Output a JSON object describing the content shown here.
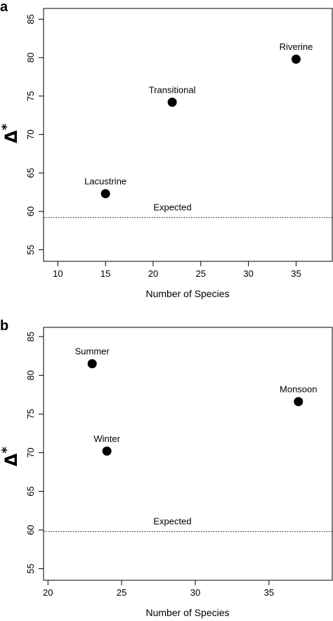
{
  "chart_data": [
    {
      "type": "scatter",
      "panel": "a",
      "xlabel": "Number of Species",
      "ylabel": "Δ*",
      "xlim": [
        8.5,
        38.8
      ],
      "ylim": [
        53.5,
        86.4
      ],
      "xticks": [
        10,
        15,
        20,
        25,
        30,
        35
      ],
      "yticks": [
        55,
        60,
        65,
        70,
        75,
        80,
        85
      ],
      "points": [
        {
          "label": "Lacustrine",
          "x": 15,
          "y": 62.3
        },
        {
          "label": "Transitional",
          "x": 22,
          "y": 74.2
        },
        {
          "label": "Riverine",
          "x": 35,
          "y": 79.8
        }
      ],
      "reference_line": {
        "label": "Expected",
        "y": 59.2,
        "style": "dotted"
      },
      "grid": false
    },
    {
      "type": "scatter",
      "panel": "b",
      "xlabel": "Number of Species",
      "ylabel": "Δ*",
      "xlim": [
        19.7,
        39.3
      ],
      "ylim": [
        53.5,
        86.2
      ],
      "xticks": [
        20,
        25,
        30,
        35
      ],
      "yticks": [
        55,
        60,
        65,
        70,
        75,
        80,
        85
      ],
      "points": [
        {
          "label": "Summer",
          "x": 23,
          "y": 81.5
        },
        {
          "label": "Monsoon",
          "x": 37,
          "y": 76.6
        },
        {
          "label": "Winter",
          "x": 24,
          "y": 70.2
        }
      ],
      "reference_line": {
        "label": "Expected",
        "y": 59.8,
        "style": "dotted"
      },
      "grid": false
    }
  ]
}
